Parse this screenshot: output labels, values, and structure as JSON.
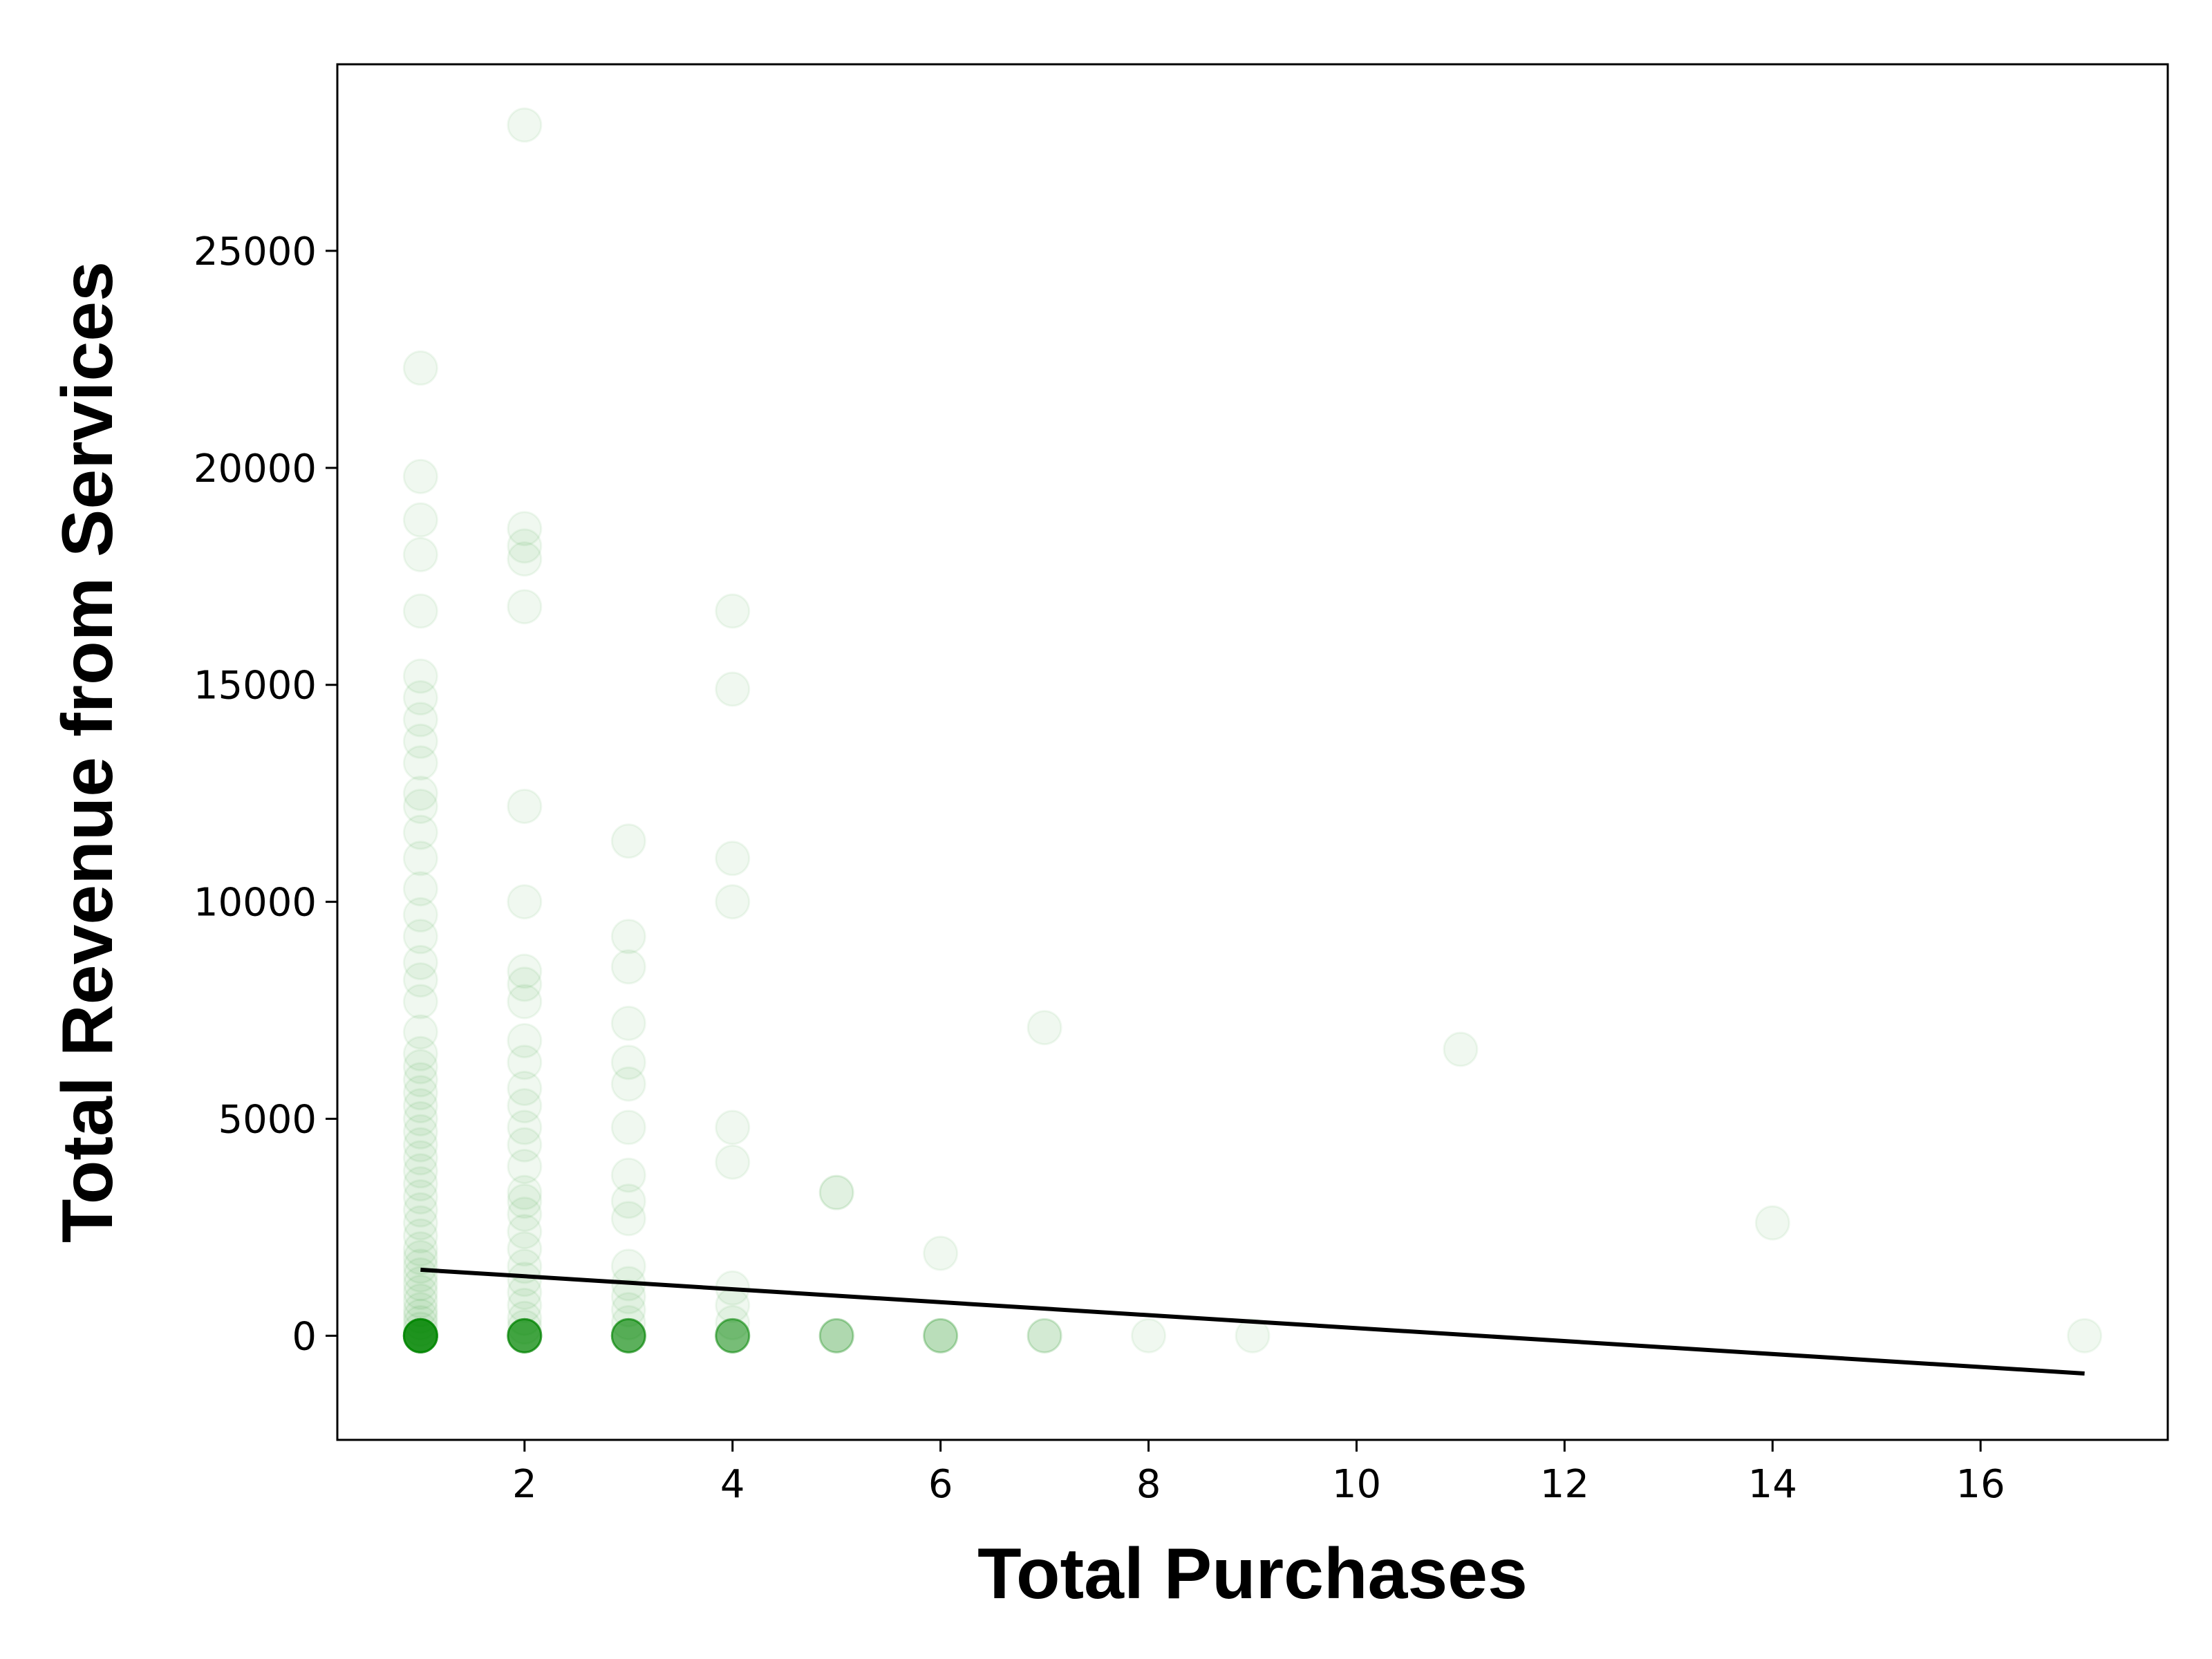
{
  "chart_data": {
    "type": "scatter",
    "title": "",
    "xlabel": "Total Purchases",
    "ylabel": "Total Revenue from Services",
    "xlim": [
      0.2,
      17.8
    ],
    "ylim": [
      -2400,
      29300
    ],
    "xticks": [
      2,
      4,
      6,
      8,
      10,
      12,
      14,
      16
    ],
    "yticks": [
      0,
      5000,
      10000,
      15000,
      20000,
      25000
    ],
    "grid": false,
    "legend": "none",
    "marker_color": "#008000",
    "marker_opacity": 0.06,
    "line_color": "#000000",
    "series": [
      {
        "type": "scatter",
        "points": [
          [
            1,
            0
          ],
          [
            1,
            0
          ],
          [
            1,
            0
          ],
          [
            1,
            0
          ],
          [
            1,
            0
          ],
          [
            1,
            0
          ],
          [
            1,
            0
          ],
          [
            1,
            0
          ],
          [
            1,
            0
          ],
          [
            1,
            0
          ],
          [
            1,
            0
          ],
          [
            1,
            0
          ],
          [
            1,
            0
          ],
          [
            1,
            0
          ],
          [
            1,
            0
          ],
          [
            1,
            0
          ],
          [
            1,
            0
          ],
          [
            1,
            0
          ],
          [
            1,
            0
          ],
          [
            1,
            0
          ],
          [
            1,
            0
          ],
          [
            1,
            0
          ],
          [
            1,
            0
          ],
          [
            1,
            0
          ],
          [
            1,
            0
          ],
          [
            1,
            0
          ],
          [
            1,
            0
          ],
          [
            1,
            0
          ],
          [
            1,
            0
          ],
          [
            1,
            0
          ],
          [
            1,
            150
          ],
          [
            1,
            300
          ],
          [
            1,
            450
          ],
          [
            1,
            600
          ],
          [
            1,
            800
          ],
          [
            1,
            1000
          ],
          [
            1,
            1200
          ],
          [
            1,
            1400
          ],
          [
            1,
            1600
          ],
          [
            1,
            1800
          ],
          [
            1,
            2000
          ],
          [
            1,
            2300
          ],
          [
            1,
            2600
          ],
          [
            1,
            2900
          ],
          [
            1,
            3200
          ],
          [
            1,
            3500
          ],
          [
            1,
            3800
          ],
          [
            1,
            4100
          ],
          [
            1,
            4400
          ],
          [
            1,
            4700
          ],
          [
            1,
            5000
          ],
          [
            1,
            5300
          ],
          [
            1,
            5600
          ],
          [
            1,
            5900
          ],
          [
            1,
            6200
          ],
          [
            1,
            6500
          ],
          [
            1,
            7000
          ],
          [
            1,
            7700
          ],
          [
            1,
            8200
          ],
          [
            1,
            8600
          ],
          [
            1,
            9200
          ],
          [
            1,
            9700
          ],
          [
            1,
            10300
          ],
          [
            1,
            11000
          ],
          [
            1,
            11600
          ],
          [
            1,
            12200
          ],
          [
            1,
            12500
          ],
          [
            1,
            13200
          ],
          [
            1,
            13700
          ],
          [
            1,
            14200
          ],
          [
            1,
            14700
          ],
          [
            1,
            15200
          ],
          [
            1,
            16700
          ],
          [
            1,
            18000
          ],
          [
            1,
            18800
          ],
          [
            1,
            19800
          ],
          [
            1,
            22300
          ],
          [
            2,
            0
          ],
          [
            2,
            0
          ],
          [
            2,
            0
          ],
          [
            2,
            0
          ],
          [
            2,
            0
          ],
          [
            2,
            0
          ],
          [
            2,
            0
          ],
          [
            2,
            0
          ],
          [
            2,
            0
          ],
          [
            2,
            0
          ],
          [
            2,
            0
          ],
          [
            2,
            0
          ],
          [
            2,
            0
          ],
          [
            2,
            0
          ],
          [
            2,
            0
          ],
          [
            2,
            0
          ],
          [
            2,
            0
          ],
          [
            2,
            0
          ],
          [
            2,
            0
          ],
          [
            2,
            0
          ],
          [
            2,
            200
          ],
          [
            2,
            400
          ],
          [
            2,
            700
          ],
          [
            2,
            1000
          ],
          [
            2,
            1300
          ],
          [
            2,
            1600
          ],
          [
            2,
            2000
          ],
          [
            2,
            2400
          ],
          [
            2,
            2800
          ],
          [
            2,
            3100
          ],
          [
            2,
            3300
          ],
          [
            2,
            3900
          ],
          [
            2,
            4400
          ],
          [
            2,
            4800
          ],
          [
            2,
            5300
          ],
          [
            2,
            5700
          ],
          [
            2,
            6300
          ],
          [
            2,
            6800
          ],
          [
            2,
            7700
          ],
          [
            2,
            8100
          ],
          [
            2,
            8400
          ],
          [
            2,
            10000
          ],
          [
            2,
            12200
          ],
          [
            2,
            16800
          ],
          [
            2,
            17900
          ],
          [
            2,
            18200
          ],
          [
            2,
            18600
          ],
          [
            2,
            27900
          ],
          [
            3,
            0
          ],
          [
            3,
            0
          ],
          [
            3,
            0
          ],
          [
            3,
            0
          ],
          [
            3,
            0
          ],
          [
            3,
            0
          ],
          [
            3,
            0
          ],
          [
            3,
            0
          ],
          [
            3,
            0
          ],
          [
            3,
            0
          ],
          [
            3,
            0
          ],
          [
            3,
            0
          ],
          [
            3,
            0
          ],
          [
            3,
            0
          ],
          [
            3,
            0
          ],
          [
            3,
            0
          ],
          [
            3,
            300
          ],
          [
            3,
            600
          ],
          [
            3,
            900
          ],
          [
            3,
            1200
          ],
          [
            3,
            1600
          ],
          [
            3,
            2700
          ],
          [
            3,
            3100
          ],
          [
            3,
            3700
          ],
          [
            3,
            4800
          ],
          [
            3,
            5800
          ],
          [
            3,
            6300
          ],
          [
            3,
            7200
          ],
          [
            3,
            8500
          ],
          [
            3,
            9200
          ],
          [
            3,
            11400
          ],
          [
            4,
            0
          ],
          [
            4,
            0
          ],
          [
            4,
            0
          ],
          [
            4,
            0
          ],
          [
            4,
            0
          ],
          [
            4,
            0
          ],
          [
            4,
            0
          ],
          [
            4,
            0
          ],
          [
            4,
            0
          ],
          [
            4,
            0
          ],
          [
            4,
            0
          ],
          [
            4,
            0
          ],
          [
            4,
            300
          ],
          [
            4,
            700
          ],
          [
            4,
            1100
          ],
          [
            4,
            4000
          ],
          [
            4,
            4800
          ],
          [
            4,
            10000
          ],
          [
            4,
            11000
          ],
          [
            4,
            14900
          ],
          [
            4,
            16700
          ],
          [
            5,
            0
          ],
          [
            5,
            0
          ],
          [
            5,
            0
          ],
          [
            5,
            0
          ],
          [
            5,
            0
          ],
          [
            5,
            0
          ],
          [
            5,
            3300
          ],
          [
            5,
            3300
          ],
          [
            6,
            0
          ],
          [
            6,
            0
          ],
          [
            6,
            0
          ],
          [
            6,
            0
          ],
          [
            6,
            0
          ],
          [
            6,
            1900
          ],
          [
            7,
            0
          ],
          [
            7,
            0
          ],
          [
            7,
            0
          ],
          [
            7,
            7100
          ],
          [
            8,
            0
          ],
          [
            9,
            0
          ],
          [
            11,
            6600
          ],
          [
            14,
            2600
          ],
          [
            17,
            0
          ]
        ]
      },
      {
        "type": "line",
        "points": [
          [
            1,
            1520
          ],
          [
            17,
            -870
          ]
        ]
      }
    ]
  }
}
